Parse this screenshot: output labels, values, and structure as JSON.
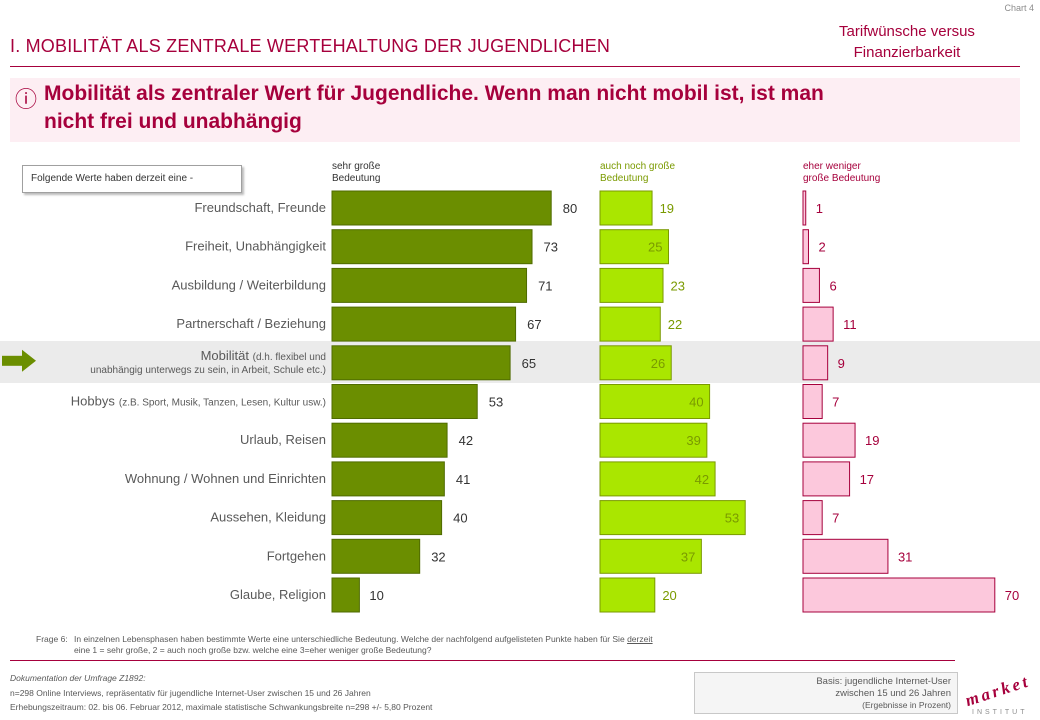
{
  "header": {
    "chart_no": "Chart 4",
    "section_title": "I. MOBILITÄT ALS ZENTRALE WERTEHALTUNG DER JUGENDLICHEN",
    "topic_line1": "Tarifwünsche versus",
    "topic_line2": "Finanzierbarkeit",
    "headline_icon": "info-icon",
    "headline_line1": "Mobilität als zentraler Wert für Jugendliche. Wenn man nicht mobil ist, ist man",
    "headline_line2": "nicht frei und unabhängig"
  },
  "values_box": {
    "label": "Folgende Werte haben derzeit eine -"
  },
  "column_headers": [
    {
      "line1": "sehr große",
      "line2": "Bedeutung",
      "color": "#333333"
    },
    {
      "line1": "auch noch große",
      "line2": "Bedeutung",
      "color": "#7a9a00"
    },
    {
      "line1": "eher weniger",
      "line2": "große Bedeutung",
      "color": "#a6003c"
    }
  ],
  "highlight": {
    "arrow_icon": "arrow-right-icon",
    "arrow_color": "#6b8e00"
  },
  "chart_data": {
    "type": "bar",
    "orientation": "horizontal",
    "stacked": false,
    "unit": "Prozent",
    "categories": [
      {
        "main": "Freundschaft, Freunde",
        "sub": ""
      },
      {
        "main": "Freiheit, Unabhängigkeit",
        "sub": ""
      },
      {
        "main": "Ausbildung / Weiterbildung",
        "sub": ""
      },
      {
        "main": "Partnerschaft / Beziehung",
        "sub": ""
      },
      {
        "main": "Mobilität",
        "sub": "(d.h. flexibel und",
        "line2": "unabhängig unterwegs zu sein, in Arbeit, Schule etc.)"
      },
      {
        "main": "Hobbys",
        "sub": "(z.B. Sport, Musik, Tanzen, Lesen, Kultur usw.)"
      },
      {
        "main": "Urlaub, Reisen",
        "sub": ""
      },
      {
        "main": "Wohnung / Wohnen und Einrichten",
        "sub": ""
      },
      {
        "main": "Aussehen, Kleidung",
        "sub": ""
      },
      {
        "main": "Fortgehen",
        "sub": ""
      },
      {
        "main": "Glaube, Religion",
        "sub": ""
      }
    ],
    "highlight_index": 4,
    "series": [
      {
        "values": [
          80,
          73,
          71,
          67,
          65,
          53,
          42,
          41,
          40,
          32,
          10
        ],
        "fill": "#6b8e00",
        "stroke": "#4f6b00",
        "label_color": "#333333"
      },
      {
        "values": [
          19,
          25,
          23,
          22,
          26,
          40,
          39,
          42,
          53,
          37,
          20
        ],
        "fill": "#aae600",
        "stroke": "#7a9a00",
        "label_color": "#7a9a00"
      },
      {
        "values": [
          1,
          2,
          6,
          11,
          9,
          7,
          19,
          17,
          7,
          31,
          70
        ],
        "fill": "#fcc8dc",
        "stroke": "#a6003c",
        "label_color": "#a6003c"
      }
    ],
    "xlim": [
      0,
      100
    ]
  },
  "footer": {
    "question_label": "Frage 6:",
    "question_text1": "In einzelnen Lebensphasen haben bestimmte Werte eine unterschiedliche Bedeutung. Welche der nachfolgend aufgelisteten Punkte haben für Sie",
    "question_underlined": "derzeit",
    "question_text2": "eine 1 = sehr große, 2 = auch noch große bzw. welche eine 3=eher weniger große Bedeutung?",
    "doc_title": "Dokumentation der Umfrage Z1892:",
    "doc_line1": "n=298 Online Interviews, repräsentativ für jugendliche Internet-User zwischen 15 und 26 Jahren",
    "doc_line2": "Erhebungszeitraum: 02. bis 06. Februar 2012, maximale statistische Schwankungsbreite n=298 +/- 5,80 Prozent",
    "basis_line1": "Basis: jugendliche Internet-User",
    "basis_line2": "zwischen 15 und 26 Jahren",
    "basis_line3": "(Ergebnisse in Prozent)",
    "logo_word": "market",
    "logo_sub": "INSTITUT"
  }
}
